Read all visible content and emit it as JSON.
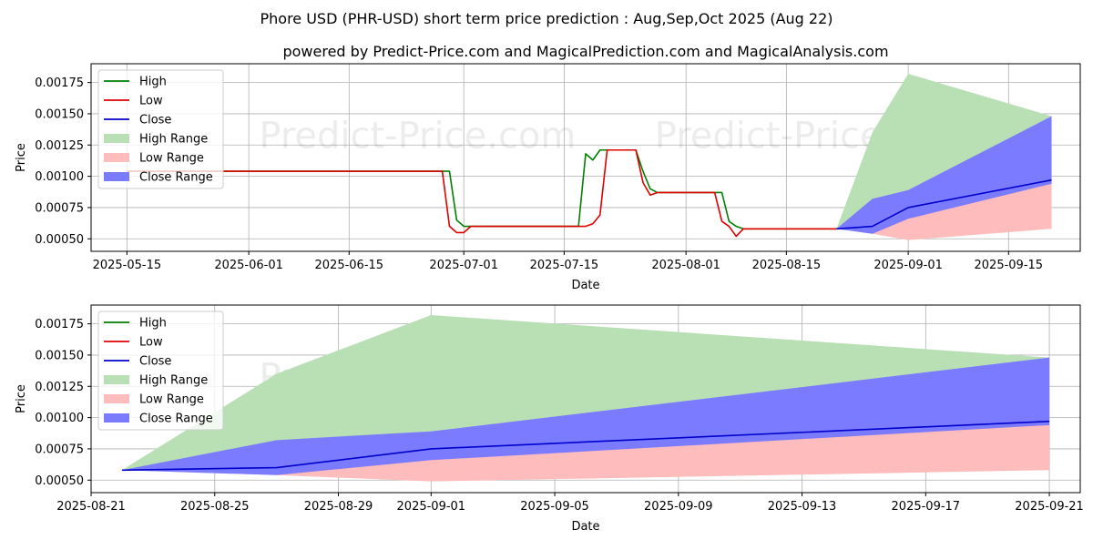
{
  "header": {
    "title": "Phore USD (PHR-USD) short term price prediction : Aug,Sep,Oct 2025 (Aug 22)",
    "subtitle": "powered by Predict-Price.com and MagicalPrediction.com and MagicalAnalysis.com"
  },
  "watermark": "Predict-Price.com",
  "colors": {
    "high": "#008000",
    "low": "#e00000",
    "close": "#0000cc",
    "high_range": "#b9dfb5",
    "low_range": "#ffbcbc",
    "close_range": "#7b7bff"
  },
  "legend": {
    "high": "High",
    "low": "Low",
    "close": "Close",
    "high_range": "High Range",
    "low_range": "Low Range",
    "close_range": "Close Range"
  },
  "chart_data": [
    {
      "type": "line",
      "xlabel": "Date",
      "ylabel": "Price",
      "xlim": [
        "2025-05-10",
        "2025-09-25"
      ],
      "ylim": [
        0.0004,
        0.0019
      ],
      "x_ticks": [
        "2025-05-15",
        "2025-06-01",
        "2025-06-15",
        "2025-07-01",
        "2025-07-15",
        "2025-08-01",
        "2025-08-15",
        "2025-09-01",
        "2025-09-15"
      ],
      "y_ticks": [
        "0.00050",
        "0.00075",
        "0.00100",
        "0.00125",
        "0.00150",
        "0.00175"
      ],
      "grid": true,
      "legend_position": "top-left",
      "series": [
        {
          "name": "High",
          "points": [
            [
              "2025-05-15",
              0.00104
            ],
            [
              "2025-06-28",
              0.00104
            ],
            [
              "2025-06-29",
              0.00104
            ],
            [
              "2025-06-30",
              0.00065
            ],
            [
              "2025-07-01",
              0.0006
            ],
            [
              "2025-07-17",
              0.0006
            ],
            [
              "2025-07-18",
              0.00118
            ],
            [
              "2025-07-19",
              0.00113
            ],
            [
              "2025-07-20",
              0.00121
            ],
            [
              "2025-07-24",
              0.00121
            ],
            [
              "2025-07-25",
              0.00121
            ],
            [
              "2025-07-26",
              0.00104
            ],
            [
              "2025-07-27",
              0.0009
            ],
            [
              "2025-07-28",
              0.00087
            ],
            [
              "2025-08-05",
              0.00087
            ],
            [
              "2025-08-06",
              0.00087
            ],
            [
              "2025-08-07",
              0.00064
            ],
            [
              "2025-08-08",
              0.0006
            ],
            [
              "2025-08-09",
              0.00058
            ],
            [
              "2025-08-22",
              0.00058
            ]
          ]
        },
        {
          "name": "Low",
          "points": [
            [
              "2025-05-15",
              0.00104
            ],
            [
              "2025-06-28",
              0.00104
            ],
            [
              "2025-06-29",
              0.0006
            ],
            [
              "2025-06-30",
              0.00055
            ],
            [
              "2025-07-01",
              0.00055
            ],
            [
              "2025-07-02",
              0.0006
            ],
            [
              "2025-07-18",
              0.0006
            ],
            [
              "2025-07-19",
              0.00062
            ],
            [
              "2025-07-20",
              0.00069
            ],
            [
              "2025-07-21",
              0.00121
            ],
            [
              "2025-07-25",
              0.00121
            ],
            [
              "2025-07-26",
              0.00095
            ],
            [
              "2025-07-27",
              0.00085
            ],
            [
              "2025-07-28",
              0.00087
            ],
            [
              "2025-08-05",
              0.00087
            ],
            [
              "2025-08-06",
              0.00064
            ],
            [
              "2025-08-07",
              0.0006
            ],
            [
              "2025-08-08",
              0.00052
            ],
            [
              "2025-08-09",
              0.00058
            ],
            [
              "2025-08-22",
              0.00058
            ]
          ]
        },
        {
          "name": "Close",
          "points": [
            [
              "2025-08-22",
              0.00058
            ],
            [
              "2025-08-27",
              0.0006
            ],
            [
              "2025-09-01",
              0.00075
            ],
            [
              "2025-09-21",
              0.00097
            ]
          ]
        }
      ],
      "ranges": [
        {
          "name": "High Range",
          "upper": [
            [
              "2025-08-22",
              0.00058
            ],
            [
              "2025-08-27",
              0.00135
            ],
            [
              "2025-09-01",
              0.00182
            ],
            [
              "2025-09-21",
              0.00148
            ]
          ],
          "lower": [
            [
              "2025-08-22",
              0.00058
            ],
            [
              "2025-08-27",
              0.0006
            ],
            [
              "2025-09-01",
              0.00075
            ],
            [
              "2025-09-21",
              0.00097
            ]
          ]
        },
        {
          "name": "Low Range",
          "upper": [
            [
              "2025-08-22",
              0.00058
            ],
            [
              "2025-08-27",
              0.0006
            ],
            [
              "2025-09-01",
              0.00075
            ],
            [
              "2025-09-21",
              0.00097
            ]
          ],
          "lower": [
            [
              "2025-08-22",
              0.00058
            ],
            [
              "2025-08-27",
              0.00054
            ],
            [
              "2025-09-01",
              0.00049
            ],
            [
              "2025-09-21",
              0.00058
            ]
          ]
        },
        {
          "name": "Close Range",
          "upper": [
            [
              "2025-08-22",
              0.00058
            ],
            [
              "2025-08-27",
              0.00082
            ],
            [
              "2025-09-01",
              0.00089
            ],
            [
              "2025-09-21",
              0.00148
            ]
          ],
          "lower": [
            [
              "2025-08-22",
              0.00058
            ],
            [
              "2025-08-27",
              0.00054
            ],
            [
              "2025-09-01",
              0.00066
            ],
            [
              "2025-09-21",
              0.00094
            ]
          ]
        }
      ]
    },
    {
      "type": "line",
      "xlabel": "Date",
      "ylabel": "Price",
      "xlim": [
        "2025-08-21",
        "2025-09-22"
      ],
      "ylim": [
        0.0004,
        0.0019
      ],
      "x_ticks": [
        "2025-08-21",
        "2025-08-25",
        "2025-08-29",
        "2025-09-01",
        "2025-09-05",
        "2025-09-09",
        "2025-09-13",
        "2025-09-17",
        "2025-09-21"
      ],
      "y_ticks": [
        "0.00050",
        "0.00075",
        "0.00100",
        "0.00125",
        "0.00150",
        "0.00175"
      ],
      "grid": true,
      "legend_position": "top-left",
      "series": [
        {
          "name": "High",
          "points": []
        },
        {
          "name": "Low",
          "points": []
        },
        {
          "name": "Close",
          "points": [
            [
              "2025-08-22",
              0.00058
            ],
            [
              "2025-08-27",
              0.0006
            ],
            [
              "2025-09-01",
              0.00075
            ],
            [
              "2025-09-21",
              0.00097
            ]
          ]
        }
      ],
      "ranges": [
        {
          "name": "High Range",
          "upper": [
            [
              "2025-08-22",
              0.00058
            ],
            [
              "2025-08-27",
              0.00135
            ],
            [
              "2025-09-01",
              0.00182
            ],
            [
              "2025-09-21",
              0.00148
            ]
          ],
          "lower": [
            [
              "2025-08-22",
              0.00058
            ],
            [
              "2025-08-27",
              0.0006
            ],
            [
              "2025-09-01",
              0.00075
            ],
            [
              "2025-09-21",
              0.00097
            ]
          ]
        },
        {
          "name": "Low Range",
          "upper": [
            [
              "2025-08-22",
              0.00058
            ],
            [
              "2025-08-27",
              0.0006
            ],
            [
              "2025-09-01",
              0.00075
            ],
            [
              "2025-09-21",
              0.00097
            ]
          ],
          "lower": [
            [
              "2025-08-22",
              0.00058
            ],
            [
              "2025-08-27",
              0.00054
            ],
            [
              "2025-09-01",
              0.00049
            ],
            [
              "2025-09-21",
              0.00058
            ]
          ]
        },
        {
          "name": "Close Range",
          "upper": [
            [
              "2025-08-22",
              0.00058
            ],
            [
              "2025-08-27",
              0.00082
            ],
            [
              "2025-09-01",
              0.00089
            ],
            [
              "2025-09-21",
              0.00148
            ]
          ],
          "lower": [
            [
              "2025-08-22",
              0.00058
            ],
            [
              "2025-08-27",
              0.00054
            ],
            [
              "2025-09-01",
              0.00066
            ],
            [
              "2025-09-21",
              0.00094
            ]
          ]
        }
      ]
    }
  ]
}
